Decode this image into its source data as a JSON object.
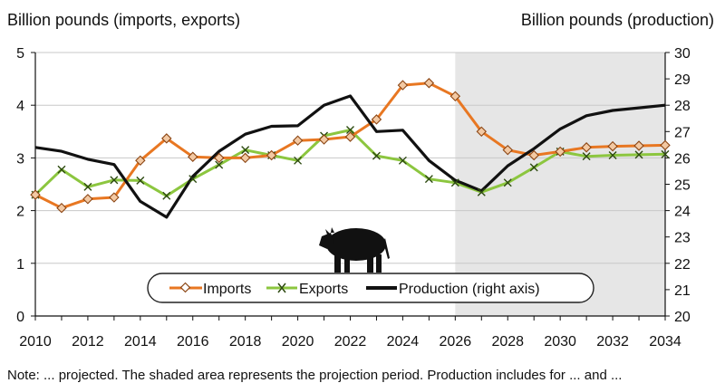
{
  "chart_data": {
    "type": "line",
    "left_axis_title": "Billion pounds (imports, exports)",
    "right_axis_title": "Billion pounds (production)",
    "x": [
      2010,
      2011,
      2012,
      2013,
      2014,
      2015,
      2016,
      2017,
      2018,
      2019,
      2020,
      2021,
      2022,
      2023,
      2024,
      2025,
      2026,
      2027,
      2028,
      2029,
      2030,
      2031,
      2032,
      2033,
      2034
    ],
    "x_tick_labels": [
      "2010",
      "2012",
      "2014",
      "2016",
      "2018",
      "2020",
      "2022",
      "2024",
      "2026",
      "2028",
      "2030",
      "2032",
      "2034"
    ],
    "x_ticks": [
      2010,
      2012,
      2014,
      2016,
      2018,
      2020,
      2022,
      2024,
      2026,
      2028,
      2030,
      2032,
      2034
    ],
    "xlim": [
      2010,
      2034
    ],
    "ylim_left": [
      0,
      5
    ],
    "yticks_left": [
      "0",
      "1",
      "2",
      "3",
      "4",
      "5"
    ],
    "ylim_right": [
      20,
      30
    ],
    "yticks_right": [
      "20",
      "21",
      "22",
      "23",
      "24",
      "25",
      "26",
      "27",
      "28",
      "29",
      "30"
    ],
    "projection_shading": [
      2026,
      2034
    ],
    "grid": "horizontal",
    "series": [
      {
        "name": "Imports",
        "axis": "left",
        "color": "#e87722",
        "marker": "diamond",
        "values": [
          2.3,
          2.05,
          2.22,
          2.25,
          2.95,
          3.37,
          3.02,
          3.0,
          3.0,
          3.05,
          3.33,
          3.35,
          3.4,
          3.73,
          4.38,
          4.42,
          4.17,
          3.5,
          3.15,
          3.05,
          3.12,
          3.2,
          3.22,
          3.23,
          3.24
        ]
      },
      {
        "name": "Exports",
        "axis": "left",
        "color": "#8cc63f",
        "marker": "x",
        "values": [
          2.3,
          2.78,
          2.45,
          2.58,
          2.57,
          2.28,
          2.6,
          2.87,
          3.15,
          3.05,
          2.95,
          3.42,
          3.53,
          3.04,
          2.95,
          2.6,
          2.53,
          2.35,
          2.53,
          2.82,
          3.12,
          3.03,
          3.05,
          3.06,
          3.07
        ]
      },
      {
        "name": "Production (right axis)",
        "axis": "right",
        "color": "#111111",
        "marker": "none",
        "values": [
          26.4,
          26.25,
          25.95,
          25.75,
          24.35,
          23.75,
          25.3,
          26.25,
          26.9,
          27.2,
          27.22,
          28.0,
          28.35,
          27.0,
          27.05,
          25.9,
          25.15,
          24.75,
          25.7,
          26.35,
          27.1,
          27.6,
          27.8,
          27.9,
          28.0
        ]
      }
    ],
    "legend_position": "bottom-center"
  },
  "note": "Note: ... projected. The shaded area represents the projection period. Production includes for ... and ...",
  "icons": {
    "cow": "cow-icon"
  }
}
